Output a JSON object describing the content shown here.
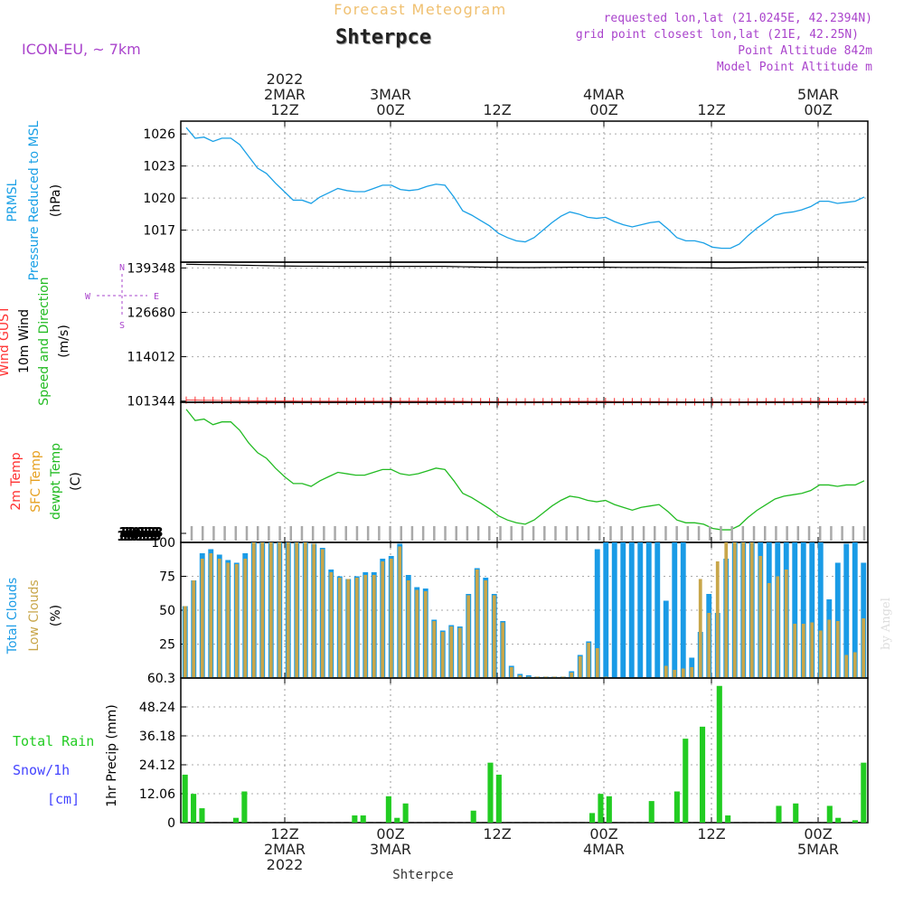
{
  "header": {
    "top_label": "Forecast Meteogram",
    "location": "Shterpce",
    "model": "ICON-EU, ~ 7km",
    "requested": "requested lon,lat (21.0245E, 42.2394N)",
    "grid_point": "grid point closest lon,lat (21E, 42.25N)",
    "point_altitude": "Point Altitude 842m",
    "model_altitude": "Model Point Altitude m"
  },
  "time_axis": {
    "top_labels": [
      {
        "lines": [
          "2022",
          "2MAR",
          "12Z"
        ]
      },
      {
        "lines": [
          "3MAR",
          "00Z"
        ]
      },
      {
        "lines": [
          "12Z"
        ]
      },
      {
        "lines": [
          "4MAR",
          "00Z"
        ]
      },
      {
        "lines": [
          "12Z"
        ]
      },
      {
        "lines": [
          "5MAR",
          "00Z"
        ]
      }
    ],
    "bottom_labels": [
      {
        "lines": [
          "12Z",
          "2MAR",
          "2022"
        ]
      },
      {
        "lines": [
          "00Z",
          "3MAR"
        ]
      },
      {
        "lines": [
          "12Z"
        ]
      },
      {
        "lines": [
          "00Z",
          "4MAR"
        ]
      },
      {
        "lines": [
          "12Z"
        ]
      },
      {
        "lines": [
          "00Z",
          "5MAR"
        ]
      }
    ],
    "footer_label": "Shterpce"
  },
  "watermark": "by Angel",
  "colors": {
    "pressure": "#1aa0e6",
    "gust": "#ff3030",
    "wind": "#000000",
    "direction": "#22bb22",
    "temp2m": "#ff3030",
    "sfc_temp": "#e6a020",
    "dewpt": "#22bb22",
    "total_clouds": "#1a9be6",
    "low_clouds": "#c8a64a",
    "rain": "#22cc22",
    "snow": "#4444ff",
    "compass": "#aa44cc",
    "header_purple": "#aa44cc",
    "header_orange": "#f0c070"
  },
  "chart_data": [
    {
      "type": "line",
      "panel": "pressure",
      "ylabel_lines": [
        {
          "text": "PRMSL",
          "color": "#1aa0e6"
        },
        {
          "text": "Pressure Reduced to MSL",
          "color": "#1aa0e6"
        },
        {
          "text": "(hPa)",
          "color": "#000000"
        }
      ],
      "yticks": [
        1017,
        1020,
        1023,
        1026
      ],
      "ylim": [
        1014,
        1027.2
      ],
      "series": [
        {
          "values": [
            1026.6,
            1025.6,
            1025.7,
            1025.3,
            1025.6,
            1025.6,
            1025.0,
            1023.9,
            1022.8,
            1022.3,
            1021.4,
            1020.6,
            1019.8,
            1019.8,
            1019.5,
            1020.1,
            1020.5,
            1020.9,
            1020.7,
            1020.6,
            1020.6,
            1020.9,
            1021.2,
            1021.2,
            1020.8,
            1020.7,
            1020.8,
            1021.1,
            1021.3,
            1021.2,
            1020.1,
            1018.8,
            1018.4,
            1017.9,
            1017.4,
            1016.7,
            1016.3,
            1016.0,
            1015.9,
            1016.3,
            1017.0,
            1017.7,
            1018.3,
            1018.7,
            1018.5,
            1018.2,
            1018.1,
            1018.2,
            1017.8,
            1017.5,
            1017.3,
            1017.5,
            1017.7,
            1017.8,
            1017.1,
            1016.3,
            1016.0,
            1016.0,
            1015.8,
            1015.4,
            1015.3,
            1015.3,
            1015.7,
            1016.5,
            1017.2,
            1017.8,
            1018.4,
            1018.6,
            1018.7,
            1018.9,
            1019.2,
            1019.7,
            1019.7,
            1019.5,
            1019.6,
            1019.7,
            1020.1
          ]
        }
      ]
    },
    {
      "type": "line",
      "panel": "wind",
      "ylabel_lines": [
        {
          "text": "Wind GUST",
          "color": "#ff3030"
        },
        {
          "text": "10m Wind",
          "color": "#000000"
        },
        {
          "text": "Speed and Direction",
          "color": "#22bb22"
        },
        {
          "text": "(m/s)",
          "color": "#000000"
        }
      ],
      "yticks": [
        101344,
        114012,
        126680,
        139348
      ],
      "ylim": [
        101000,
        141000
      ],
      "compass": {
        "n": "N",
        "s": "S",
        "e": "E",
        "w": "W"
      },
      "series": [
        {
          "name": "10m Wind",
          "values": [
            140400,
            140350,
            140300,
            140300,
            140250,
            140200,
            140150,
            140100,
            140050,
            140000,
            139950,
            139900,
            139880,
            139850,
            139850,
            139830,
            139820,
            139800,
            139800,
            139800,
            139800,
            139800,
            139800,
            139800,
            139800,
            139800,
            139800,
            139800,
            139800,
            139800,
            139750,
            139700,
            139650,
            139600,
            139550,
            139500,
            139480,
            139450,
            139450,
            139450,
            139480,
            139500,
            139520,
            139550,
            139550,
            139550,
            139550,
            139550,
            139520,
            139500,
            139480,
            139480,
            139480,
            139480,
            139450,
            139420,
            139400,
            139400,
            139380,
            139350,
            139330,
            139330,
            139350,
            139380,
            139420,
            139450,
            139480,
            139500,
            139520,
            139550,
            139550,
            139580,
            139600,
            139600,
            139600,
            139600,
            139600
          ]
        },
        {
          "name": "Wind GUST",
          "values": [
            101600,
            101600,
            101550,
            101550,
            101500,
            101500,
            101450,
            101450,
            101400,
            101400,
            101350,
            101350,
            101350,
            101300,
            101300,
            101300,
            101300,
            101300,
            101300,
            101300,
            101300,
            101300,
            101300,
            101300,
            101300,
            101300,
            101300,
            101300,
            101300,
            101300,
            101250,
            101250,
            101200,
            101200,
            101200,
            101150,
            101150,
            101150,
            101150,
            101150,
            101200,
            101200,
            101200,
            101250,
            101250,
            101250,
            101250,
            101250,
            101200,
            101200,
            101200,
            101200,
            101200,
            101200,
            101150,
            101150,
            101100,
            101100,
            101100,
            101100,
            101100,
            101100,
            101100,
            101150,
            101150,
            101200,
            101200,
            101200,
            101200,
            101250,
            101250,
            101250,
            101250,
            101250,
            101250,
            101250,
            101250
          ]
        }
      ]
    },
    {
      "type": "line",
      "panel": "temperature",
      "ylabel_lines": [
        {
          "text": "2m Temp",
          "color": "#ff3030"
        },
        {
          "text": "SFC Temp",
          "color": "#e6a020"
        },
        {
          "text": "dewpt Temp",
          "color": "#22bb22"
        },
        {
          "text": "(C)",
          "color": "#000000"
        }
      ],
      "ytick_clutter": "1013",
      "ylim": [
        0,
        1
      ],
      "series": [
        {
          "name": "dewpt Temp",
          "values": [
            0.95,
            0.87,
            0.88,
            0.84,
            0.86,
            0.86,
            0.8,
            0.71,
            0.64,
            0.6,
            0.53,
            0.47,
            0.42,
            0.42,
            0.4,
            0.44,
            0.47,
            0.5,
            0.49,
            0.48,
            0.48,
            0.5,
            0.52,
            0.52,
            0.49,
            0.48,
            0.49,
            0.51,
            0.53,
            0.52,
            0.44,
            0.35,
            0.32,
            0.28,
            0.24,
            0.19,
            0.16,
            0.14,
            0.13,
            0.16,
            0.21,
            0.26,
            0.3,
            0.33,
            0.32,
            0.3,
            0.29,
            0.3,
            0.27,
            0.25,
            0.23,
            0.25,
            0.26,
            0.27,
            0.22,
            0.16,
            0.14,
            0.14,
            0.13,
            0.1,
            0.09,
            0.09,
            0.12,
            0.18,
            0.23,
            0.27,
            0.31,
            0.33,
            0.34,
            0.35,
            0.37,
            0.41,
            0.41,
            0.4,
            0.41,
            0.41,
            0.44
          ]
        }
      ]
    },
    {
      "type": "bar",
      "panel": "clouds",
      "ylabel_lines": [
        {
          "text": "Total Clouds",
          "color": "#1a9be6"
        },
        {
          "text": "Low Clouds",
          "color": "#c8a64a"
        },
        {
          "text": "(%)",
          "color": "#000000"
        }
      ],
      "yticks": [
        25,
        50,
        75,
        100
      ],
      "ylim": [
        0,
        100
      ],
      "series": [
        {
          "name": "Total Clouds",
          "values": [
            53,
            72,
            92,
            95,
            91,
            87,
            85,
            92,
            100,
            100,
            100,
            100,
            100,
            100,
            100,
            99,
            96,
            80,
            75,
            73,
            75,
            78,
            78,
            88,
            90,
            99,
            76,
            67,
            66,
            43,
            35,
            39,
            38,
            62,
            81,
            74,
            62,
            42,
            9,
            3,
            2,
            1,
            1,
            1,
            1,
            5,
            17,
            27,
            95,
            100,
            100,
            100,
            100,
            100,
            100,
            100,
            57,
            100,
            100,
            15,
            34,
            62,
            48,
            88,
            100,
            100,
            100,
            100,
            100,
            100,
            100,
            100,
            100,
            100,
            100,
            58,
            85,
            99,
            100,
            85
          ]
        },
        {
          "name": "Low Clouds",
          "values": [
            53,
            72,
            88,
            92,
            88,
            85,
            84,
            88,
            100,
            100,
            100,
            100,
            100,
            100,
            100,
            99,
            95,
            78,
            74,
            73,
            74,
            76,
            76,
            86,
            88,
            97,
            72,
            65,
            64,
            42,
            34,
            38,
            37,
            61,
            80,
            72,
            61,
            41,
            8,
            2,
            1,
            1,
            1,
            1,
            1,
            4,
            16,
            26,
            22,
            1,
            0,
            0,
            0,
            0,
            0,
            0,
            9,
            6,
            7,
            8,
            73,
            48,
            86,
            100,
            100,
            100,
            100,
            90,
            70,
            75,
            80,
            40,
            40,
            41,
            35,
            43,
            42,
            17,
            19,
            44
          ]
        }
      ]
    },
    {
      "type": "bar",
      "panel": "precip",
      "ylabel_lines": [
        {
          "text": "1hr Precip (mm)",
          "color": "#000000"
        }
      ],
      "left_labels": [
        {
          "text": "Total  Rain",
          "color": "#22cc22"
        },
        {
          "text": "Snow/1h",
          "color": "#4444ff"
        },
        {
          "text": "[cm]",
          "color": "#4444ff"
        }
      ],
      "yticks": [
        0,
        12.06,
        24.12,
        36.18,
        48.24,
        60.3
      ],
      "ytick_labels": [
        "0",
        "12.06",
        "24.12",
        "36.18",
        "48.24",
        "60.3"
      ],
      "ylim": [
        0,
        60.3
      ],
      "series": [
        {
          "name": "Total Rain",
          "values": [
            20,
            12,
            6,
            0,
            0,
            0,
            2,
            13,
            0,
            0,
            0,
            0,
            0,
            0,
            0,
            0,
            0,
            0,
            0,
            0,
            3,
            3,
            0,
            0,
            11,
            2,
            8,
            0,
            0,
            0,
            0,
            0,
            0,
            0,
            5,
            0,
            25,
            20,
            0,
            0,
            0,
            0,
            0,
            0,
            0,
            0,
            0,
            0,
            4,
            12,
            11,
            0,
            0,
            0,
            0,
            9,
            0,
            0,
            13,
            35,
            0,
            40,
            0,
            57,
            3,
            0,
            0,
            0,
            0,
            0,
            7,
            0,
            8,
            0,
            0,
            0,
            7,
            2,
            0,
            1,
            25
          ]
        }
      ]
    }
  ]
}
